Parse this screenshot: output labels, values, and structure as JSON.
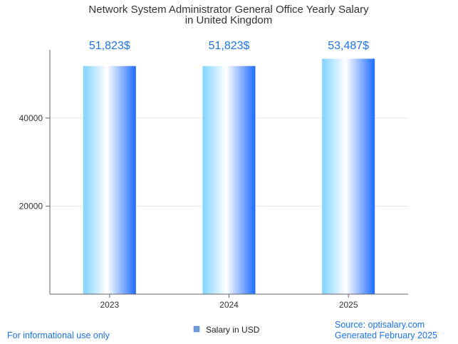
{
  "chart_data": {
    "type": "bar",
    "title": [
      "Network System Administrator General Office Yearly Salary",
      "in United Kingdom"
    ],
    "categories": [
      "2023",
      "2024",
      "2025"
    ],
    "series": [
      {
        "name": "Salary in USD",
        "values": [
          51823,
          51823,
          53487
        ],
        "labels": [
          "51,823$",
          "51,823$",
          "53,487$"
        ]
      }
    ],
    "ylim": [
      0,
      55500
    ],
    "yticks": [
      20000,
      40000
    ],
    "ytick_labels": [
      "20000",
      "40000"
    ],
    "grid": true,
    "legend": "bottom-center"
  },
  "footer": {
    "left": "For informational use only",
    "source": "Source: optisalary.com",
    "generated": "Generated February 2025"
  },
  "colors": {
    "data_label": "#1a73e8",
    "footer_text": "#1a73e8",
    "legend_swatch": "#6f9ad8",
    "bar_light": "#80d4ff",
    "bar_white": "#ffffff",
    "bar_dark": "#1e6cff",
    "grid": "#e6e6e6",
    "axis": "#666666"
  }
}
